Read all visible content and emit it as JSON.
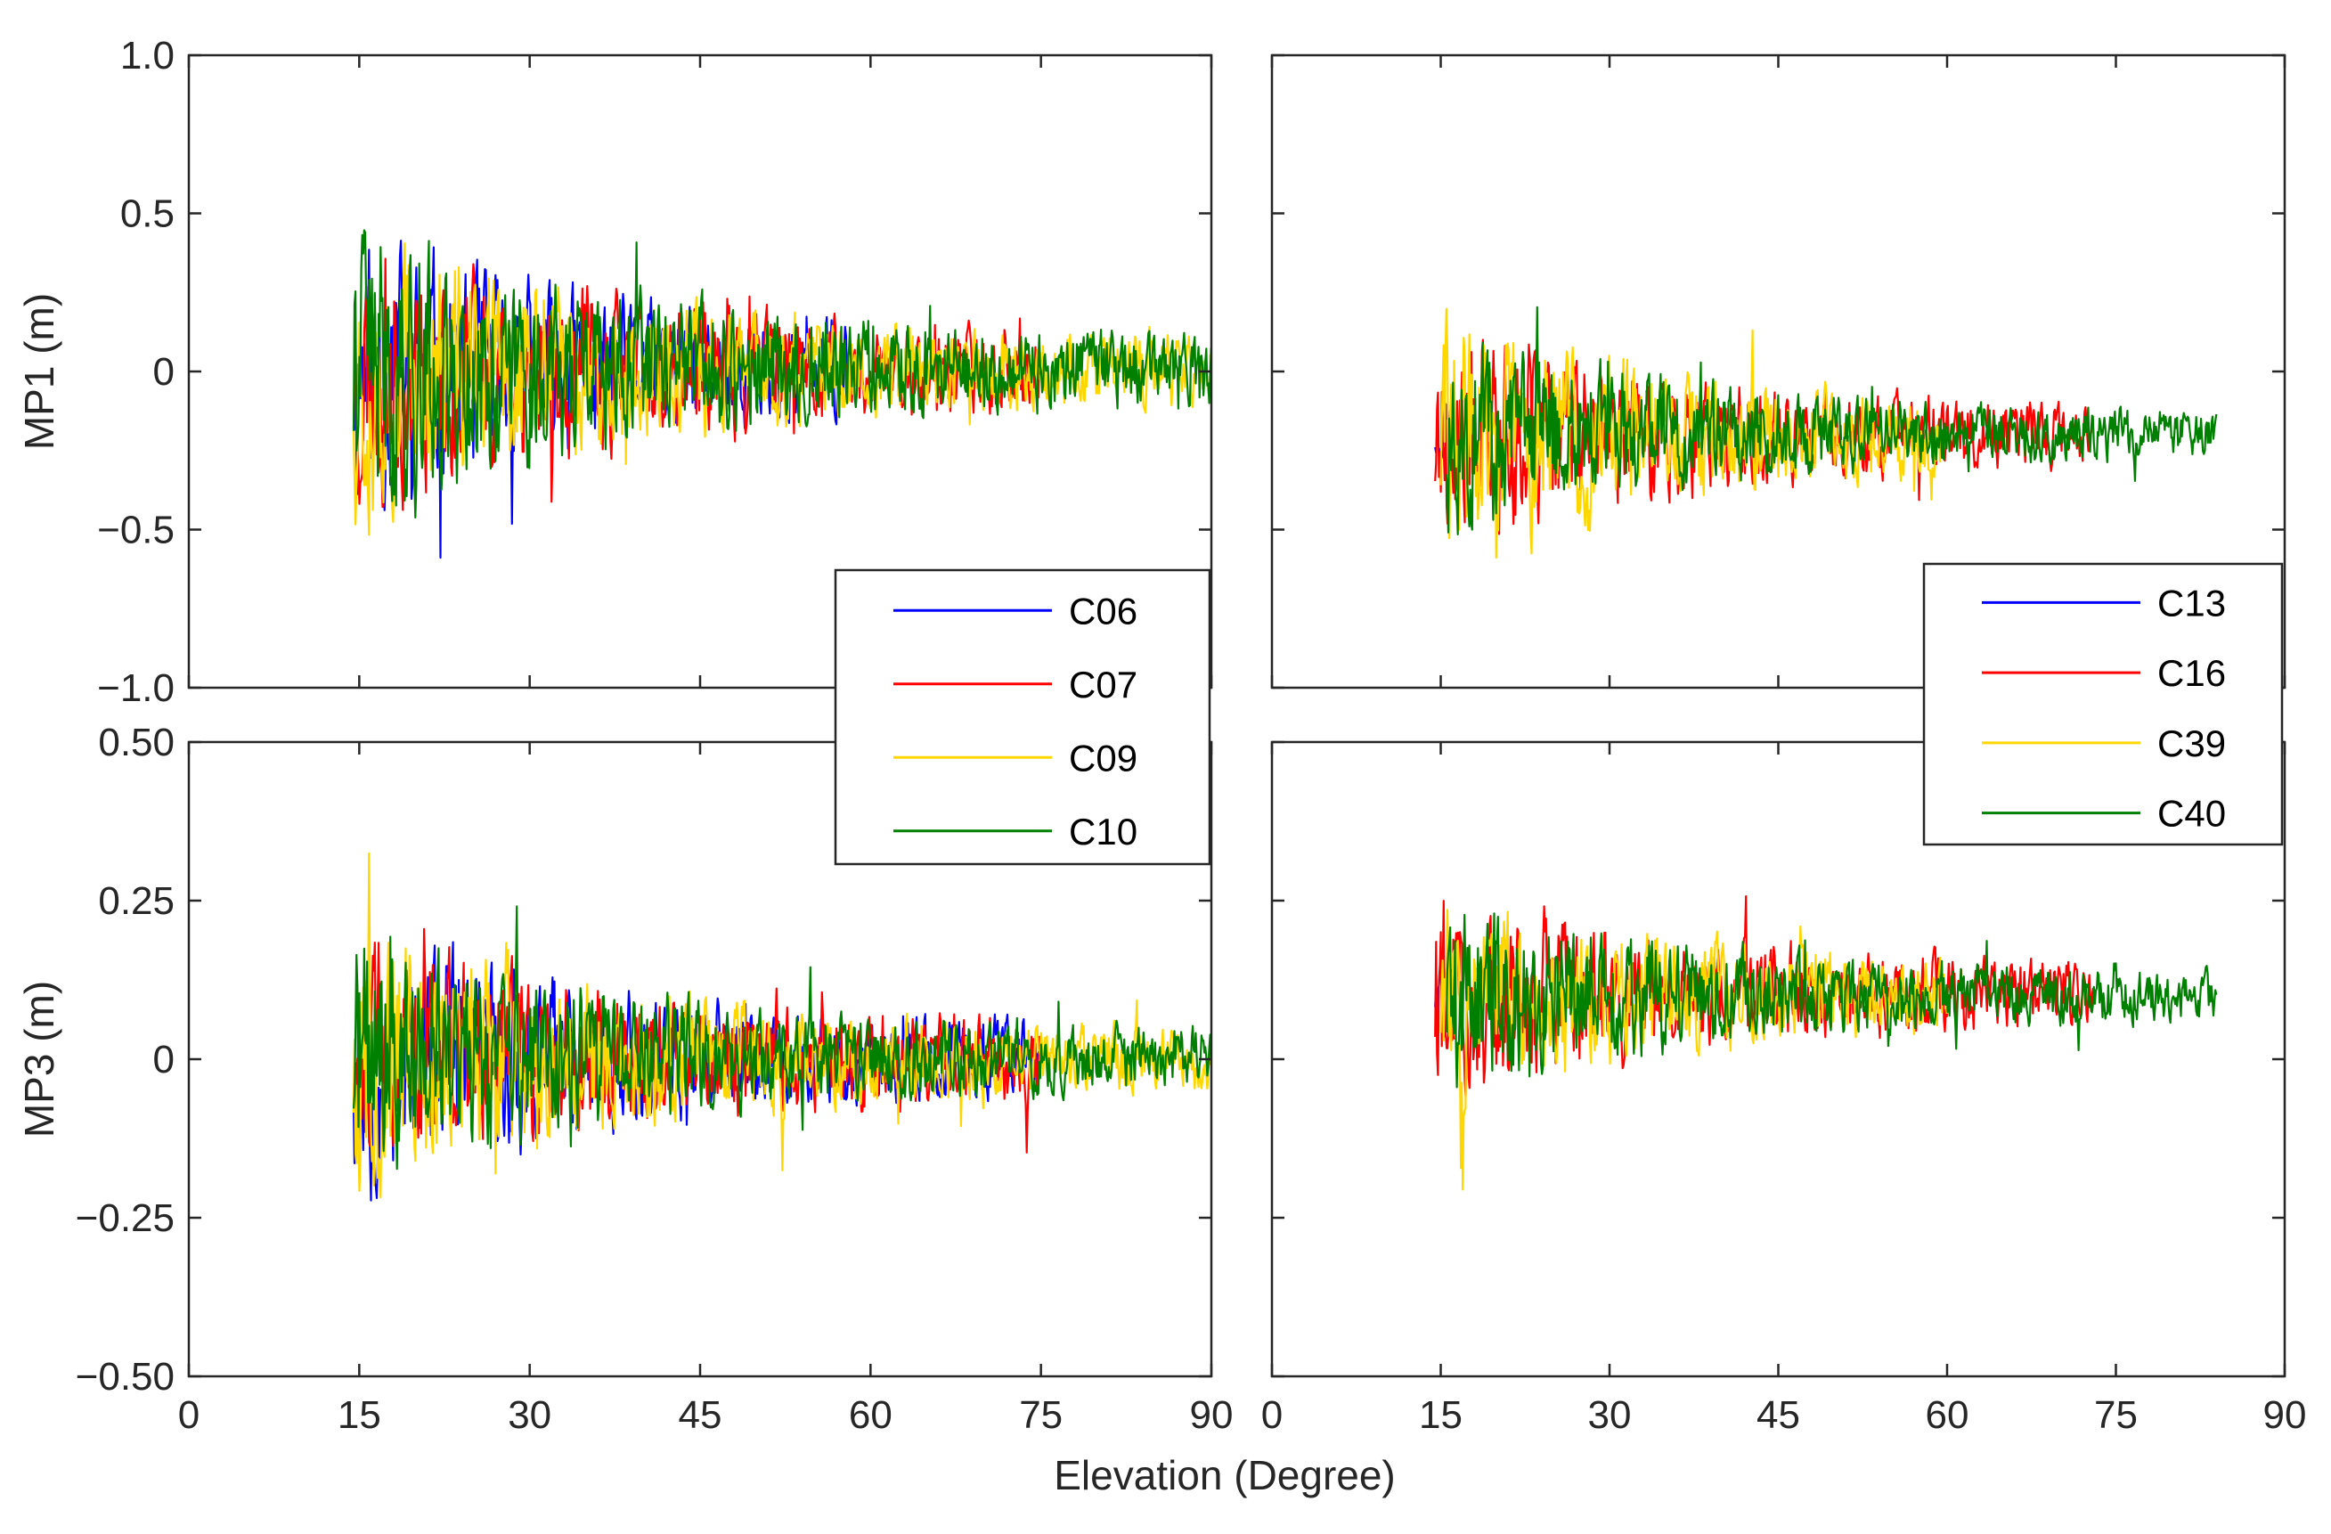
{
  "chart_data": [
    {
      "id": "mp1_left",
      "type": "line",
      "xlabel": "",
      "ylabel": "MP1 (m)",
      "xlim": [
        0,
        90
      ],
      "ylim": [
        -1.0,
        1.0
      ],
      "yticks": [
        -1.0,
        -0.5,
        0,
        0.5,
        1.0
      ],
      "ytick_labels": [
        "−1.0",
        "−0.5",
        "0",
        "0.5",
        "1.0"
      ],
      "show_yticklabels": true,
      "series": [
        {
          "name": "C06",
          "color": "#0000ff",
          "start": 14.5,
          "end": 58,
          "offset": 0.0,
          "amp_start": 0.55,
          "amp_end": 0.12,
          "seed": 11
        },
        {
          "name": "C07",
          "color": "#ff0000",
          "start": 14.5,
          "end": 75,
          "offset": 0.0,
          "amp_start": 0.55,
          "amp_end": 0.13,
          "seed": 23
        },
        {
          "name": "C09",
          "color": "#ffd700",
          "start": 14.5,
          "end": 90,
          "offset": 0.0,
          "amp_start": 0.58,
          "amp_end": 0.12,
          "seed": 37
        },
        {
          "name": "C10",
          "color": "#008000",
          "start": 14.5,
          "end": 90,
          "offset": 0.0,
          "amp_start": 0.6,
          "amp_end": 0.12,
          "seed": 41
        }
      ]
    },
    {
      "id": "mp1_right",
      "type": "line",
      "xlabel": "",
      "ylabel": "",
      "xlim": [
        0,
        90
      ],
      "ylim": [
        -1.0,
        1.0
      ],
      "yticks": [
        -1.0,
        -0.5,
        0,
        0.5,
        1.0
      ],
      "show_yticklabels": false,
      "series": [
        {
          "name": "C13",
          "color": "#0000ff",
          "start": 14.5,
          "end": 16,
          "offset": -0.2,
          "amp_start": 0.12,
          "amp_end": 0.12,
          "seed": 5
        },
        {
          "name": "C16",
          "color": "#ff0000",
          "start": 14.5,
          "end": 73,
          "offset": -0.2,
          "amp_start": 0.45,
          "amp_end": 0.09,
          "seed": 17
        },
        {
          "name": "C39",
          "color": "#ffd700",
          "start": 15,
          "end": 60,
          "offset": -0.2,
          "amp_start": 0.5,
          "amp_end": 0.1,
          "seed": 29
        },
        {
          "name": "C40",
          "color": "#008000",
          "start": 15.5,
          "end": 84,
          "offset": -0.2,
          "amp_start": 0.4,
          "amp_end": 0.08,
          "seed": 43
        }
      ]
    },
    {
      "id": "mp3_left",
      "type": "line",
      "xlabel": "",
      "ylabel": "MP3 (m)",
      "xlim": [
        0,
        90
      ],
      "ylim": [
        -0.5,
        0.5
      ],
      "yticks": [
        -0.5,
        -0.25,
        0,
        0.25,
        0.5
      ],
      "ytick_labels": [
        "−0.50",
        "−0.25",
        "0",
        "0.25",
        "0.50"
      ],
      "xticks": [
        0,
        15,
        30,
        45,
        60,
        75,
        90
      ],
      "xtick_labels": [
        "0",
        "15",
        "30",
        "45",
        "60",
        "75",
        "90"
      ],
      "show_yticklabels": true,
      "series": [
        {
          "name": "C06",
          "color": "#0000ff",
          "start": 14.5,
          "end": 75,
          "offset": 0.0,
          "amp_start": 0.26,
          "amp_end": 0.06,
          "seed": 53
        },
        {
          "name": "C07",
          "color": "#ff0000",
          "start": 14.5,
          "end": 75,
          "offset": 0.0,
          "amp_start": 0.24,
          "amp_end": 0.07,
          "seed": 61
        },
        {
          "name": "C09",
          "color": "#ffd700",
          "start": 14.5,
          "end": 90,
          "offset": 0.0,
          "amp_start": 0.28,
          "amp_end": 0.05,
          "seed": 67
        },
        {
          "name": "C10",
          "color": "#008000",
          "start": 14.5,
          "end": 90,
          "offset": 0.0,
          "amp_start": 0.26,
          "amp_end": 0.05,
          "seed": 71
        }
      ]
    },
    {
      "id": "mp3_right",
      "type": "line",
      "xlabel": "",
      "ylabel": "",
      "xlim": [
        0,
        90
      ],
      "ylim": [
        -0.5,
        0.5
      ],
      "yticks": [
        -0.5,
        -0.25,
        0,
        0.25,
        0.5
      ],
      "xticks": [
        0,
        15,
        30,
        45,
        60,
        75,
        90
      ],
      "xtick_labels": [
        "0",
        "15",
        "30",
        "45",
        "60",
        "75",
        "90"
      ],
      "show_yticklabels": false,
      "series": [
        {
          "name": "C13",
          "color": "#0000ff",
          "start": 14.5,
          "end": 16,
          "offset": 0.1,
          "amp_start": 0.06,
          "amp_end": 0.06,
          "seed": 73
        },
        {
          "name": "C16",
          "color": "#ff0000",
          "start": 14.5,
          "end": 73,
          "offset": 0.1,
          "amp_start": 0.22,
          "amp_end": 0.05,
          "seed": 79
        },
        {
          "name": "C39",
          "color": "#ffd700",
          "start": 15,
          "end": 60,
          "offset": 0.1,
          "amp_start": 0.2,
          "amp_end": 0.05,
          "seed": 83
        },
        {
          "name": "C40",
          "color": "#008000",
          "start": 15.5,
          "end": 84,
          "offset": 0.1,
          "amp_start": 0.2,
          "amp_end": 0.04,
          "seed": 89
        }
      ]
    }
  ],
  "shared_xlabel": "Elevation (Degree)",
  "legends": [
    {
      "id": "legend_left",
      "entries": [
        {
          "label": "C06",
          "color": "#0000ff"
        },
        {
          "label": "C07",
          "color": "#ff0000"
        },
        {
          "label": "C09",
          "color": "#ffd700"
        },
        {
          "label": "C10",
          "color": "#008000"
        }
      ]
    },
    {
      "id": "legend_right",
      "entries": [
        {
          "label": "C13",
          "color": "#0000ff"
        },
        {
          "label": "C16",
          "color": "#ff0000"
        },
        {
          "label": "C39",
          "color": "#ffd700"
        },
        {
          "label": "C40",
          "color": "#008000"
        }
      ]
    }
  ]
}
